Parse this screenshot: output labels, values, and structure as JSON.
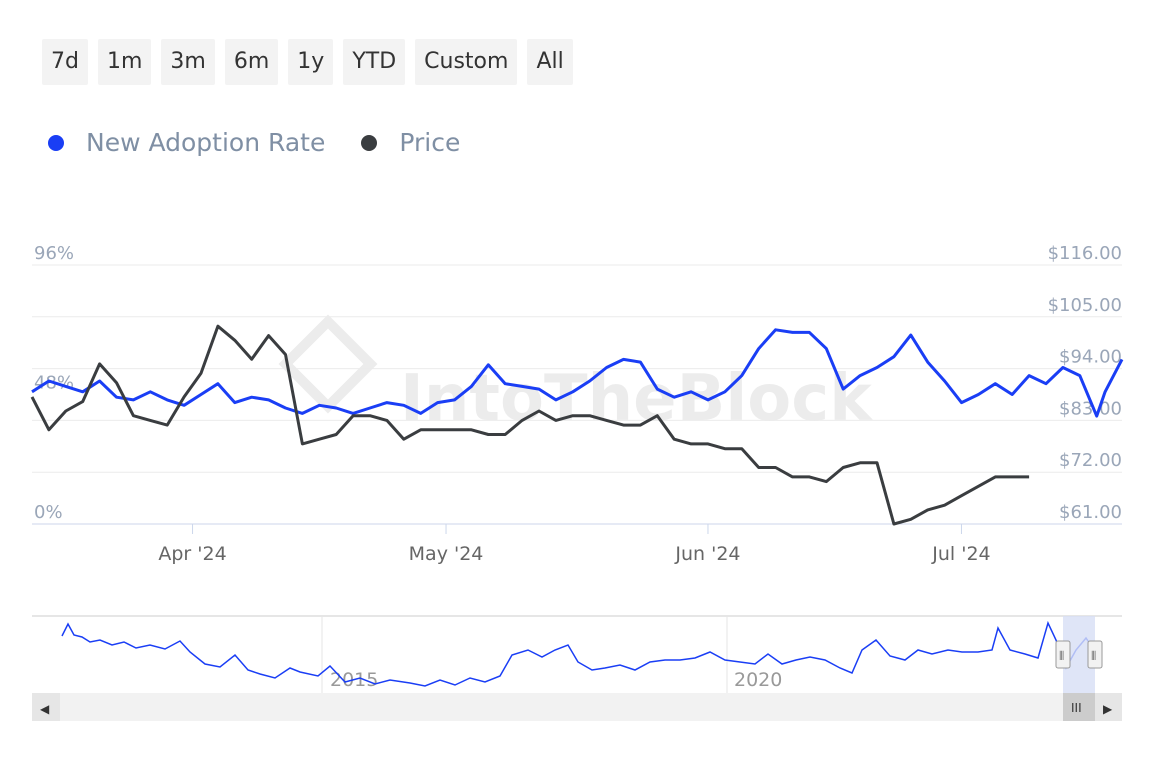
{
  "range_buttons": [
    "7d",
    "1m",
    "3m",
    "6m",
    "1y",
    "YTD",
    "Custom",
    "All"
  ],
  "legend": [
    {
      "label": "New Adoption Rate",
      "color": "#1a3ef5"
    },
    {
      "label": "Price",
      "color": "#3a3d40"
    }
  ],
  "navigator": {
    "labels": [
      "2015",
      "2020"
    ],
    "handle_glyph": "⦀",
    "scroll_left_glyph": "◀",
    "scroll_right_glyph": "▶",
    "scroll_thumb_glyph": "III"
  },
  "chart_data": {
    "type": "line",
    "y_left": {
      "ticks": [
        "0%",
        "48%",
        "96%"
      ],
      "range": [
        0,
        96
      ]
    },
    "y_right": {
      "ticks": [
        "$61.00",
        "$72.00",
        "$83.00",
        "$94.00",
        "$105.00",
        "$116.00"
      ],
      "range": [
        61,
        116
      ]
    },
    "x_ticks": [
      "Apr '24",
      "May '24",
      "Jun '24",
      "Jul '24"
    ],
    "x_range": [
      "2024-03-13",
      "2024-07-20"
    ],
    "x_tick_dates": [
      "2024-04-01",
      "2024-05-01",
      "2024-06-01",
      "2024-07-01"
    ],
    "series": [
      {
        "name": "New Adoption Rate",
        "axis": "left",
        "color": "#1a3ef5",
        "points": [
          [
            "2024-03-13",
            49
          ],
          [
            "2024-03-15",
            53
          ],
          [
            "2024-03-17",
            51
          ],
          [
            "2024-03-19",
            49
          ],
          [
            "2024-03-21",
            53
          ],
          [
            "2024-03-23",
            47
          ],
          [
            "2024-03-25",
            46
          ],
          [
            "2024-03-27",
            49
          ],
          [
            "2024-03-29",
            46
          ],
          [
            "2024-03-31",
            44
          ],
          [
            "2024-04-02",
            48
          ],
          [
            "2024-04-04",
            52
          ],
          [
            "2024-04-06",
            45
          ],
          [
            "2024-04-08",
            47
          ],
          [
            "2024-04-10",
            46
          ],
          [
            "2024-04-12",
            43
          ],
          [
            "2024-04-14",
            41
          ],
          [
            "2024-04-16",
            44
          ],
          [
            "2024-04-18",
            43
          ],
          [
            "2024-04-20",
            41
          ],
          [
            "2024-04-22",
            43
          ],
          [
            "2024-04-24",
            45
          ],
          [
            "2024-04-26",
            44
          ],
          [
            "2024-04-28",
            41
          ],
          [
            "2024-04-30",
            45
          ],
          [
            "2024-05-02",
            46
          ],
          [
            "2024-05-04",
            51
          ],
          [
            "2024-05-06",
            59
          ],
          [
            "2024-05-08",
            52
          ],
          [
            "2024-05-10",
            51
          ],
          [
            "2024-05-12",
            50
          ],
          [
            "2024-05-14",
            46
          ],
          [
            "2024-05-16",
            49
          ],
          [
            "2024-05-18",
            53
          ],
          [
            "2024-05-20",
            58
          ],
          [
            "2024-05-22",
            61
          ],
          [
            "2024-05-24",
            60
          ],
          [
            "2024-05-26",
            50
          ],
          [
            "2024-05-28",
            47
          ],
          [
            "2024-05-30",
            49
          ],
          [
            "2024-06-01",
            46
          ],
          [
            "2024-06-03",
            49
          ],
          [
            "2024-06-05",
            55
          ],
          [
            "2024-06-07",
            65
          ],
          [
            "2024-06-09",
            72
          ],
          [
            "2024-06-11",
            71
          ],
          [
            "2024-06-13",
            71
          ],
          [
            "2024-06-15",
            65
          ],
          [
            "2024-06-17",
            50
          ],
          [
            "2024-06-19",
            55
          ],
          [
            "2024-06-21",
            58
          ],
          [
            "2024-06-23",
            62
          ],
          [
            "2024-06-25",
            70
          ],
          [
            "2024-06-27",
            60
          ],
          [
            "2024-06-29",
            53
          ],
          [
            "2024-07-01",
            45
          ],
          [
            "2024-07-03",
            48
          ],
          [
            "2024-07-05",
            52
          ],
          [
            "2024-07-07",
            48
          ],
          [
            "2024-07-09",
            55
          ],
          [
            "2024-07-11",
            52
          ],
          [
            "2024-07-13",
            58
          ],
          [
            "2024-07-15",
            55
          ],
          [
            "2024-07-17",
            40
          ],
          [
            "2024-07-18",
            49
          ],
          [
            "2024-07-20",
            61
          ]
        ]
      },
      {
        "name": "Price",
        "axis": "right",
        "color": "#3a3d40",
        "points": [
          [
            "2024-03-13",
            88
          ],
          [
            "2024-03-15",
            81
          ],
          [
            "2024-03-17",
            85
          ],
          [
            "2024-03-19",
            87
          ],
          [
            "2024-03-21",
            95
          ],
          [
            "2024-03-23",
            91
          ],
          [
            "2024-03-25",
            84
          ],
          [
            "2024-03-27",
            83
          ],
          [
            "2024-03-29",
            82
          ],
          [
            "2024-03-31",
            88
          ],
          [
            "2024-04-02",
            93
          ],
          [
            "2024-04-04",
            103
          ],
          [
            "2024-04-06",
            100
          ],
          [
            "2024-04-08",
            96
          ],
          [
            "2024-04-10",
            101
          ],
          [
            "2024-04-12",
            97
          ],
          [
            "2024-04-14",
            78
          ],
          [
            "2024-04-16",
            79
          ],
          [
            "2024-04-18",
            80
          ],
          [
            "2024-04-20",
            84
          ],
          [
            "2024-04-22",
            84
          ],
          [
            "2024-04-24",
            83
          ],
          [
            "2024-04-26",
            79
          ],
          [
            "2024-04-28",
            81
          ],
          [
            "2024-04-30",
            81
          ],
          [
            "2024-05-02",
            81
          ],
          [
            "2024-05-04",
            81
          ],
          [
            "2024-05-06",
            80
          ],
          [
            "2024-05-08",
            80
          ],
          [
            "2024-05-10",
            83
          ],
          [
            "2024-05-12",
            85
          ],
          [
            "2024-05-14",
            83
          ],
          [
            "2024-05-16",
            84
          ],
          [
            "2024-05-18",
            84
          ],
          [
            "2024-05-20",
            83
          ],
          [
            "2024-05-22",
            82
          ],
          [
            "2024-05-24",
            82
          ],
          [
            "2024-05-26",
            84
          ],
          [
            "2024-05-28",
            79
          ],
          [
            "2024-05-30",
            78
          ],
          [
            "2024-06-01",
            78
          ],
          [
            "2024-06-03",
            77
          ],
          [
            "2024-06-05",
            77
          ],
          [
            "2024-06-07",
            73
          ],
          [
            "2024-06-09",
            73
          ],
          [
            "2024-06-11",
            71
          ],
          [
            "2024-06-13",
            71
          ],
          [
            "2024-06-15",
            70
          ],
          [
            "2024-06-17",
            73
          ],
          [
            "2024-06-19",
            74
          ],
          [
            "2024-06-21",
            74
          ],
          [
            "2024-06-23",
            61
          ],
          [
            "2024-06-25",
            62
          ],
          [
            "2024-06-27",
            64
          ],
          [
            "2024-06-29",
            65
          ],
          [
            "2024-07-01",
            67
          ],
          [
            "2024-07-03",
            69
          ],
          [
            "2024-07-05",
            71
          ],
          [
            "2024-07-07",
            71
          ],
          [
            "2024-07-09",
            71
          ]
        ]
      }
    ]
  }
}
